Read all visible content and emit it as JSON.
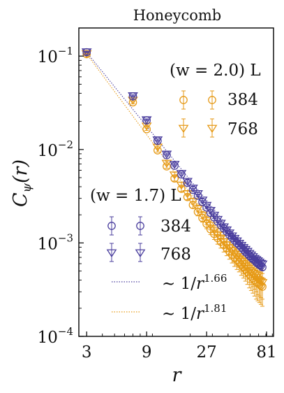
{
  "chart_data": {
    "type": "scatter",
    "title": "Honeycomb",
    "xlabel": "r",
    "ylabel": "C_ψ(r)",
    "xscale": "log",
    "yscale": "log",
    "xlim": [
      2.6,
      92
    ],
    "ylim": [
      0.0001,
      0.2
    ],
    "xticks": [
      3,
      9,
      27,
      81
    ],
    "xtick_labels": [
      "3",
      "9",
      "27",
      "81"
    ],
    "yticks": [
      0.1,
      0.01,
      0.001,
      0.0001
    ],
    "ytick_exponents": [
      "−1",
      "−2",
      "−3",
      "−4"
    ],
    "legend_orange_title": "(w = 2.0) L",
    "legend_blue_title": "(w = 1.7) L",
    "colors": {
      "orange": "#e69a17",
      "blue": "#4b3f9e"
    },
    "series": [
      {
        "name": "384",
        "group": "w=2.0",
        "marker": "circle",
        "color": "#e69a17",
        "x": [
          3,
          7,
          9,
          11,
          13,
          15,
          17,
          19,
          21,
          23,
          25,
          27,
          29,
          31,
          33,
          35,
          37,
          39,
          41,
          43,
          45,
          47,
          49,
          51,
          53,
          55,
          57,
          59,
          61,
          63,
          65,
          67,
          69,
          71,
          73,
          75
        ],
        "y": [
          0.105,
          0.032,
          0.0165,
          0.0098,
          0.0066,
          0.0049,
          0.0038,
          0.0031,
          0.00255,
          0.00215,
          0.00185,
          0.0016,
          0.0014,
          0.00125,
          0.00113,
          0.00103,
          0.00095,
          0.00088,
          0.00081,
          0.00075,
          0.0007,
          0.00066,
          0.00062,
          0.00058,
          0.00055,
          0.00052,
          0.00049,
          0.00046,
          0.00044,
          0.00042,
          0.0004,
          0.00038,
          0.00037,
          0.00036,
          0.00035,
          0.00034
        ],
        "yerr": [
          0.002,
          0.001,
          0.0005,
          0.0004,
          0.0003,
          0.0003,
          0.00025,
          0.0002,
          0.0002,
          0.0002,
          0.00018,
          0.00018,
          0.00017,
          0.00016,
          0.00016,
          0.00015,
          0.00015,
          0.00015,
          0.00014,
          0.00014,
          0.00014,
          0.00014,
          0.00013,
          0.00013,
          0.00013,
          0.00013,
          0.00013,
          0.00013,
          0.00013,
          0.00013,
          0.00013,
          0.00013,
          0.00013,
          0.00013,
          0.00013,
          0.00013
        ]
      },
      {
        "name": "768",
        "group": "w=2.0",
        "marker": "triangle-down",
        "color": "#e69a17",
        "x": [
          3,
          7,
          9,
          11,
          13,
          15,
          17,
          19,
          21,
          23,
          25,
          27,
          29,
          31,
          33,
          35,
          37,
          39,
          41,
          43,
          45,
          47,
          49,
          51,
          53,
          55,
          57,
          59,
          61,
          63,
          65,
          67,
          69,
          71,
          73,
          75
        ],
        "y": [
          0.107,
          0.034,
          0.018,
          0.0107,
          0.0072,
          0.0054,
          0.0042,
          0.0034,
          0.0028,
          0.00235,
          0.002,
          0.00175,
          0.00155,
          0.00138,
          0.00125,
          0.00114,
          0.00104,
          0.00096,
          0.00089,
          0.00083,
          0.00077,
          0.00072,
          0.00068,
          0.00064,
          0.0006,
          0.00057,
          0.00054,
          0.00051,
          0.00049,
          0.00047,
          0.00045,
          0.00043,
          0.00041,
          0.0004,
          0.00039,
          0.00038
        ],
        "yerr": [
          0.002,
          0.001,
          0.0005,
          0.0004,
          0.0003,
          0.0003,
          0.00025,
          0.0002,
          0.0002,
          0.0002,
          0.00018,
          0.00018,
          0.00017,
          0.00016,
          0.00016,
          0.00015,
          0.00015,
          0.00015,
          0.00014,
          0.00014,
          0.00014,
          0.00014,
          0.00013,
          0.00013,
          0.00013,
          0.00013,
          0.00013,
          0.00013,
          0.00013,
          0.00013,
          0.00013,
          0.00013,
          0.00013,
          0.00013,
          0.00013,
          0.00013
        ]
      },
      {
        "name": "384",
        "group": "w=1.7",
        "marker": "circle",
        "color": "#4b3f9e",
        "x": [
          3,
          7,
          9,
          11,
          13,
          15,
          17,
          19,
          21,
          23,
          25,
          27,
          29,
          31,
          33,
          35,
          37,
          39,
          41,
          43,
          45,
          47,
          49,
          51,
          53,
          55,
          57,
          59,
          61,
          63,
          65,
          67,
          69,
          71,
          73,
          75
        ],
        "y": [
          0.11,
          0.037,
          0.0205,
          0.0124,
          0.0087,
          0.0067,
          0.0054,
          0.0044,
          0.0037,
          0.0032,
          0.00275,
          0.0024,
          0.0021,
          0.00188,
          0.0017,
          0.00155,
          0.00143,
          0.00132,
          0.00122,
          0.00114,
          0.00107,
          0.001,
          0.00095,
          0.0009,
          0.00085,
          0.0008,
          0.00077,
          0.00073,
          0.0007,
          0.00067,
          0.00065,
          0.00062,
          0.0006,
          0.00058,
          0.00057,
          0.00055
        ],
        "yerr": [
          0.001,
          0.0005,
          0.0003,
          0.0002,
          0.00015,
          0.00012,
          0.0001,
          0.0001,
          8e-05,
          7e-05,
          6e-05,
          6e-05,
          5e-05,
          5e-05,
          5e-05,
          4e-05,
          4e-05,
          4e-05,
          4e-05,
          4e-05,
          4e-05,
          4e-05,
          4e-05,
          4e-05,
          4e-05,
          4e-05,
          4e-05,
          4e-05,
          4e-05,
          4e-05,
          4e-05,
          4e-05,
          4e-05,
          4e-05,
          4e-05,
          4e-05
        ]
      },
      {
        "name": "768",
        "group": "w=1.7",
        "marker": "triangle-down",
        "color": "#4b3f9e",
        "x": [
          3,
          7,
          9,
          11,
          13,
          15,
          17,
          19,
          21,
          23,
          25,
          27,
          29,
          31,
          33,
          35,
          37,
          39,
          41,
          43,
          45,
          47,
          49,
          51,
          53,
          55,
          57,
          59,
          61,
          63,
          65,
          67,
          69,
          71,
          73,
          75
        ],
        "y": [
          0.112,
          0.038,
          0.021,
          0.0128,
          0.009,
          0.007,
          0.0056,
          0.0046,
          0.0039,
          0.0034,
          0.0029,
          0.00255,
          0.00225,
          0.002,
          0.0018,
          0.00164,
          0.0015,
          0.00139,
          0.00129,
          0.0012,
          0.00113,
          0.00106,
          0.001,
          0.00095,
          0.0009,
          0.00086,
          0.00082,
          0.00078,
          0.00075,
          0.00072,
          0.00069,
          0.00067,
          0.00065,
          0.00063,
          0.00061,
          0.0006
        ],
        "yerr": [
          0.001,
          0.0005,
          0.0003,
          0.0002,
          0.00015,
          0.00012,
          0.0001,
          0.0001,
          8e-05,
          7e-05,
          6e-05,
          6e-05,
          5e-05,
          5e-05,
          5e-05,
          4e-05,
          4e-05,
          4e-05,
          4e-05,
          4e-05,
          4e-05,
          4e-05,
          4e-05,
          4e-05,
          4e-05,
          4e-05,
          4e-05,
          4e-05,
          4e-05,
          4e-05,
          4e-05,
          4e-05,
          4e-05,
          4e-05,
          4e-05,
          4e-05
        ]
      }
    ],
    "fits": [
      {
        "name": "~ 1/r^1.66",
        "label_prefix": "∼ 1/",
        "label_base": "r",
        "exponent": "1.66",
        "color": "#4b3f9e",
        "style": "dotted",
        "amplitude": 0.68,
        "power": -1.66
      },
      {
        "name": "~ 1/r^1.81",
        "label_prefix": "∼ 1/",
        "label_base": "r",
        "exponent": "1.81",
        "color": "#e69a17",
        "style": "dotted",
        "amplitude": 0.77,
        "power": -1.81
      }
    ]
  }
}
